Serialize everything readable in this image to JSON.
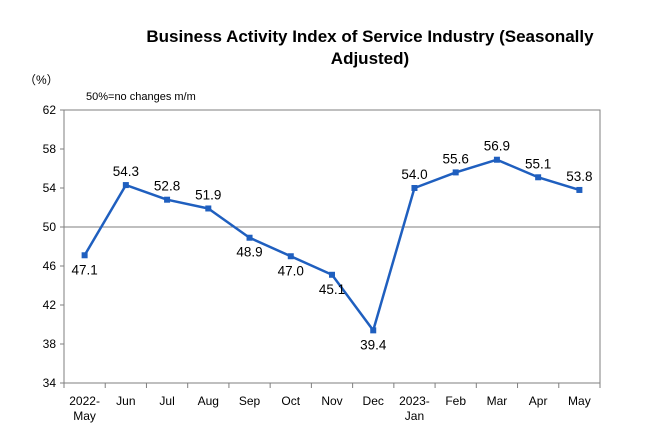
{
  "chart_data": {
    "type": "line",
    "title_line1": "Business Activity Index of Service Industry (Seasonally",
    "title_line2": "Adjusted)",
    "unit_label": "（%）",
    "note": "50%=no changes m/m",
    "ylim": [
      34,
      62
    ],
    "yticks": [
      "34",
      "38",
      "42",
      "46",
      "50",
      "54",
      "58",
      "62"
    ],
    "reference_line": 50,
    "categories": [
      [
        "2022-",
        "May"
      ],
      [
        "Jun"
      ],
      [
        "Jul"
      ],
      [
        "Aug"
      ],
      [
        "Sep"
      ],
      [
        "Oct"
      ],
      [
        "Nov"
      ],
      [
        "Dec"
      ],
      [
        "2023-",
        "Jan"
      ],
      [
        "Feb"
      ],
      [
        "Mar"
      ],
      [
        "Apr"
      ],
      [
        "May"
      ]
    ],
    "series": [
      {
        "values": [
          47.1,
          54.3,
          52.8,
          51.9,
          48.9,
          47.0,
          45.1,
          39.4,
          54.0,
          55.6,
          56.9,
          55.1,
          53.8
        ],
        "labels": [
          "47.1",
          "54.3",
          "52.8",
          "51.9",
          "48.9",
          "47.0",
          "45.1",
          "39.4",
          "54.0",
          "55.6",
          "56.9",
          "55.1",
          "53.8"
        ],
        "color": "#1F5FBF"
      }
    ],
    "grid": false
  }
}
